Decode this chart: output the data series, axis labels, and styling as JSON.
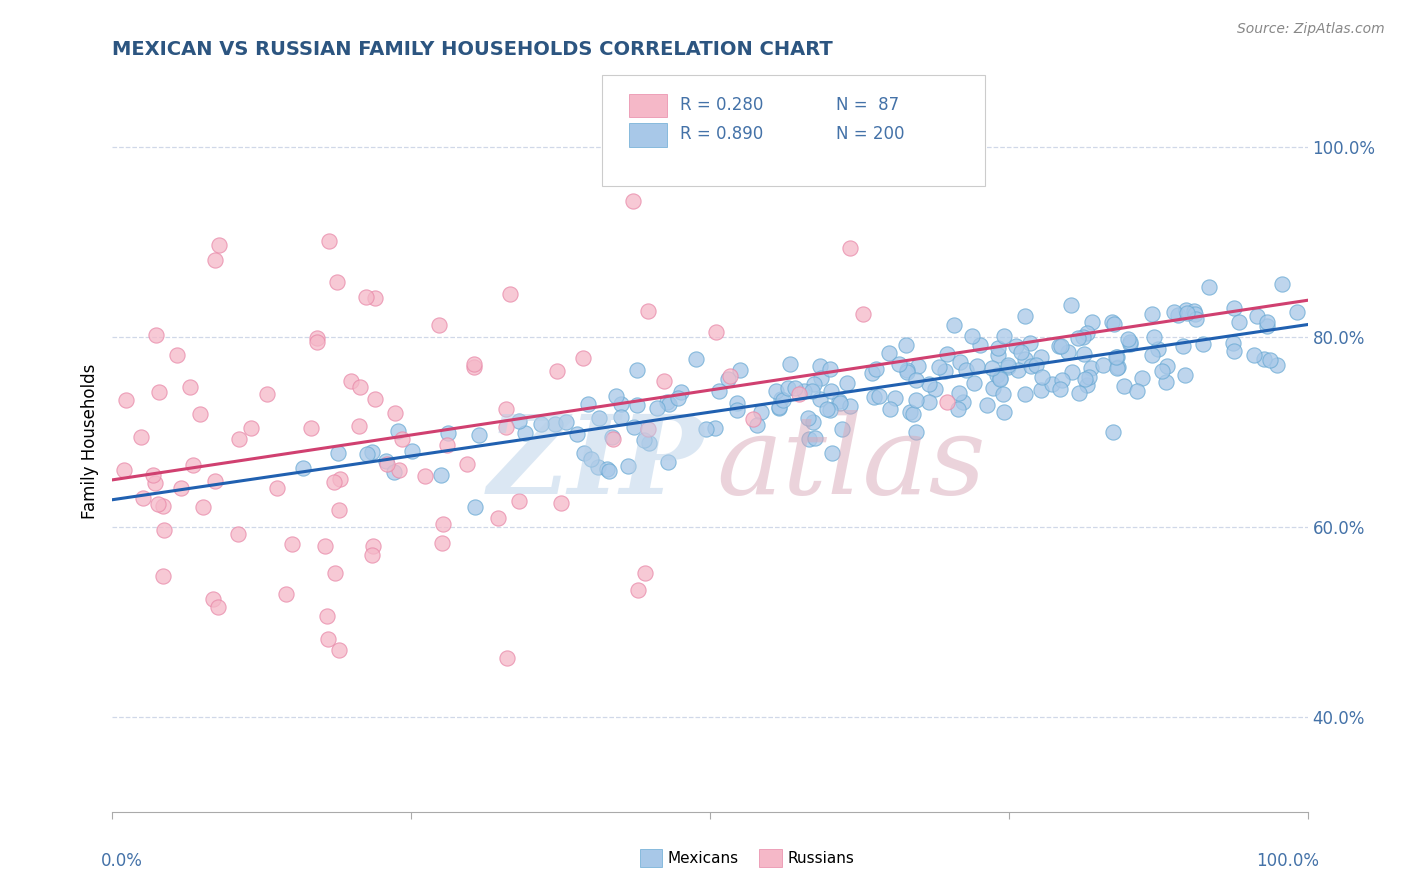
{
  "title": "MEXICAN VS RUSSIAN FAMILY HOUSEHOLDS CORRELATION CHART",
  "source_text": "Source: ZipAtlas.com",
  "ylabel": "Family Households",
  "watermark_zip": "ZIP",
  "watermark_atlas": "atlas",
  "legend": {
    "blue_R": "R = 0.890",
    "blue_N": "N = 200",
    "pink_R": "R = 0.280",
    "pink_N": "N =  87"
  },
  "blue_fill_color": "#a8c8e8",
  "blue_edge_color": "#6aaad4",
  "pink_fill_color": "#f5b8c8",
  "pink_edge_color": "#e888a8",
  "blue_line_color": "#2060b0",
  "pink_line_color": "#d04070",
  "title_color": "#2c5580",
  "tick_color": "#4472a8",
  "grid_color": "#d0d8e8",
  "background_color": "#ffffff",
  "watermark_zip_color": "#b8d0e8",
  "watermark_atlas_color": "#d8a8b8",
  "legend_text_color": "#4472a8",
  "legend_r_color": "#4472a8",
  "source_color": "#888888",
  "blue_seed": 42,
  "pink_seed": 123,
  "xlim": [
    0.0,
    1.0
  ],
  "ylim": [
    0.3,
    1.08
  ],
  "yticks": [
    0.4,
    0.6,
    0.8,
    1.0
  ],
  "ytick_labels": [
    "40.0%",
    "60.0%",
    "80.0%",
    "100.0%"
  ]
}
